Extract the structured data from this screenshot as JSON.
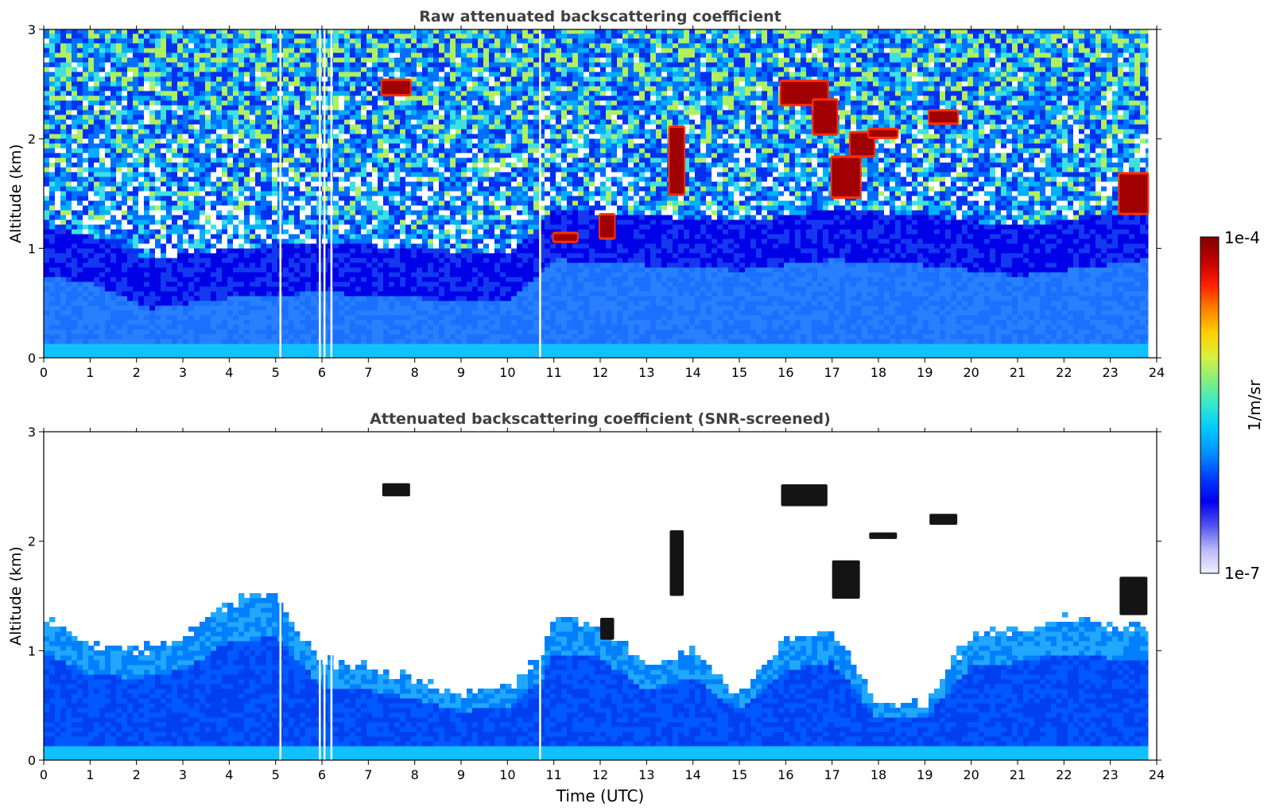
{
  "chart_data": [
    {
      "type": "heatmap",
      "title": "Raw attenuated backscattering coefficient",
      "xlabel": "",
      "ylabel": "Altitude (km)",
      "xlim": [
        0,
        24
      ],
      "ylim": [
        0,
        3
      ],
      "xticks": [
        "0",
        "1",
        "2",
        "3",
        "4",
        "5",
        "6",
        "7",
        "8",
        "9",
        "10",
        "11",
        "12",
        "13",
        "14",
        "15",
        "16",
        "17",
        "18",
        "19",
        "20",
        "21",
        "22",
        "23",
        "24"
      ],
      "yticks": [
        "0",
        "1",
        "2",
        "3"
      ],
      "screened": false,
      "data_gaps_utc": [
        5.1,
        5.95,
        6.05,
        6.2,
        10.7
      ],
      "boundary_layer_top_km": [
        [
          0,
          0.75
        ],
        [
          1,
          0.68
        ],
        [
          2,
          0.5
        ],
        [
          2.3,
          0.45
        ],
        [
          4,
          0.55
        ],
        [
          6,
          0.6
        ],
        [
          8,
          0.55
        ],
        [
          10,
          0.5
        ],
        [
          11,
          0.9
        ],
        [
          13,
          0.85
        ],
        [
          15,
          0.8
        ],
        [
          17,
          0.9
        ],
        [
          19,
          0.85
        ],
        [
          21,
          0.75
        ],
        [
          23.8,
          0.9
        ]
      ],
      "clouds": [
        {
          "t0": 7.3,
          "t1": 7.9,
          "alt_km": 2.47,
          "depth_km": 0.12
        },
        {
          "t0": 11.0,
          "t1": 11.5,
          "alt_km": 1.1,
          "depth_km": 0.06
        },
        {
          "t0": 12.0,
          "t1": 12.3,
          "alt_km": 1.2,
          "depth_km": 0.2
        },
        {
          "t0": 13.5,
          "t1": 13.8,
          "alt_km": 1.8,
          "depth_km": 0.6
        },
        {
          "t0": 15.9,
          "t1": 16.9,
          "alt_km": 2.42,
          "depth_km": 0.2
        },
        {
          "t0": 16.6,
          "t1": 17.1,
          "alt_km": 2.2,
          "depth_km": 0.3
        },
        {
          "t0": 17.0,
          "t1": 17.6,
          "alt_km": 1.65,
          "depth_km": 0.35
        },
        {
          "t0": 17.4,
          "t1": 17.9,
          "alt_km": 1.95,
          "depth_km": 0.2
        },
        {
          "t0": 17.8,
          "t1": 18.4,
          "alt_km": 2.05,
          "depth_km": 0.06
        },
        {
          "t0": 19.1,
          "t1": 19.7,
          "alt_km": 2.2,
          "depth_km": 0.1
        },
        {
          "t0": 23.2,
          "t1": 23.8,
          "alt_km": 1.5,
          "depth_km": 0.35
        }
      ]
    },
    {
      "type": "heatmap",
      "title": "Attenuated backscattering coefficient (SNR-screened)",
      "xlabel": "Time (UTC)",
      "ylabel": "Altitude (km)",
      "xlim": [
        0,
        24
      ],
      "ylim": [
        0,
        3
      ],
      "xticks": [
        "0",
        "1",
        "2",
        "3",
        "4",
        "5",
        "6",
        "7",
        "8",
        "9",
        "10",
        "11",
        "12",
        "13",
        "14",
        "15",
        "16",
        "17",
        "18",
        "19",
        "20",
        "21",
        "22",
        "23",
        "24"
      ],
      "yticks": [
        "0",
        "1",
        "2",
        "3"
      ],
      "screened": true,
      "data_gaps_utc": [
        5.1,
        5.95,
        6.05,
        6.2,
        10.7
      ],
      "screened_top_km": [
        [
          0,
          1.3
        ],
        [
          1,
          1.05
        ],
        [
          2,
          1.0
        ],
        [
          3,
          1.1
        ],
        [
          4,
          1.45
        ],
        [
          5,
          1.5
        ],
        [
          6,
          0.9
        ],
        [
          7,
          0.85
        ],
        [
          8,
          0.75
        ],
        [
          9,
          0.6
        ],
        [
          10,
          0.65
        ],
        [
          10.7,
          0.95
        ],
        [
          11,
          1.3
        ],
        [
          12,
          1.25
        ],
        [
          13,
          0.85
        ],
        [
          14,
          1.0
        ],
        [
          15,
          0.6
        ],
        [
          16,
          1.1
        ],
        [
          17,
          1.2
        ],
        [
          18,
          0.5
        ],
        [
          19,
          0.5
        ],
        [
          20,
          1.15
        ],
        [
          21,
          1.2
        ],
        [
          22,
          1.3
        ],
        [
          23.8,
          1.2
        ]
      ],
      "clouds": [
        {
          "t0": 7.3,
          "t1": 7.9,
          "alt_km": 2.47,
          "depth_km": 0.12
        },
        {
          "t0": 12.0,
          "t1": 12.3,
          "alt_km": 1.2,
          "depth_km": 0.2
        },
        {
          "t0": 13.5,
          "t1": 13.8,
          "alt_km": 1.8,
          "depth_km": 0.6
        },
        {
          "t0": 15.9,
          "t1": 16.9,
          "alt_km": 2.42,
          "depth_km": 0.2
        },
        {
          "t0": 17.0,
          "t1": 17.6,
          "alt_km": 1.65,
          "depth_km": 0.35
        },
        {
          "t0": 17.8,
          "t1": 18.4,
          "alt_km": 2.05,
          "depth_km": 0.06
        },
        {
          "t0": 19.1,
          "t1": 19.7,
          "alt_km": 2.2,
          "depth_km": 0.1
        },
        {
          "t0": 23.2,
          "t1": 23.8,
          "alt_km": 1.5,
          "depth_km": 0.35
        }
      ]
    }
  ],
  "colorbar": {
    "label": "1/m/sr",
    "max_label": "1e-4",
    "min_label": "1e-7",
    "scale": "log",
    "colors": [
      "#f0f0ff",
      "#b8b8f8",
      "#5050f0",
      "#0000f0",
      "#0040ff",
      "#0090ff",
      "#00c8ff",
      "#30e8d0",
      "#80f080",
      "#d8f040",
      "#ffd000",
      "#ff8000",
      "#ff2000",
      "#c00000",
      "#800000"
    ]
  }
}
